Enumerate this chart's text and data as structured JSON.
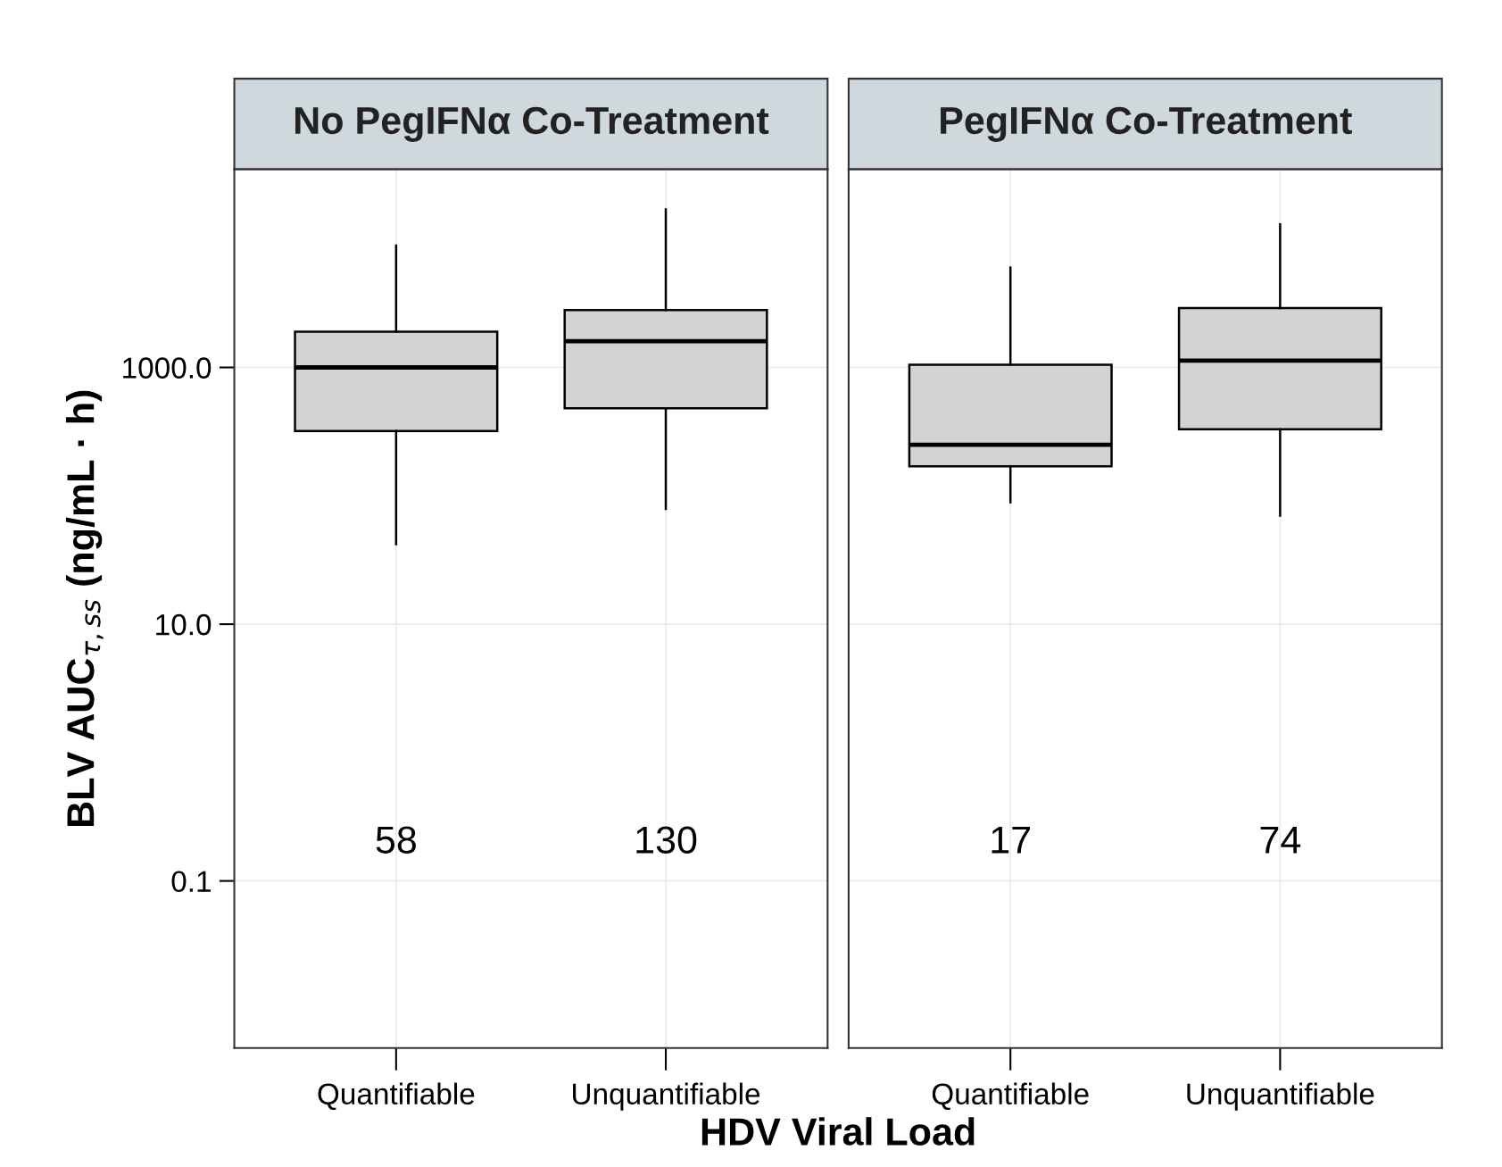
{
  "chart_data": [
    {
      "type": "box",
      "title": "No PegIFNα Co-Treatment",
      "xlabel": "HDV Viral Load",
      "ylabel": "BLV AUC$_{τ,ss}$ (ng/mL · h)",
      "categories": [
        "Quantifiable",
        "Unquantifiable"
      ],
      "color": "#d3d3d3",
      "boxes": [
        {
          "low": 42,
          "q1": 320,
          "median": 1000,
          "q3": 1900,
          "high": 8900
        },
        {
          "low": 79,
          "q1": 480,
          "median": 1600,
          "q3": 2800,
          "high": 17000
        }
      ],
      "log": true,
      "ylim": [
        0.005,
        35000
      ],
      "yticks": [
        {
          "value": 0.1,
          "label": "0.1"
        },
        {
          "value": 10,
          "label": "10.0"
        },
        {
          "value": 1000,
          "label": "1000.0"
        }
      ],
      "grid": true,
      "annotations": [
        "58",
        "130"
      ]
    },
    {
      "type": "box",
      "title": "PegIFNα Co-Treatment",
      "categories": [
        "Quantifiable",
        "Unquantifiable"
      ],
      "color": "#d3d3d3",
      "boxes": [
        {
          "low": 89,
          "q1": 170,
          "median": 250,
          "q3": 1050,
          "high": 6000
        },
        {
          "low": 70,
          "q1": 330,
          "median": 1130,
          "q3": 2900,
          "high": 13000
        }
      ],
      "log": true,
      "ylim": [
        0.005,
        35000
      ],
      "yticks": [
        {
          "value": 0.1,
          "label": null
        },
        {
          "value": 10,
          "label": null
        },
        {
          "value": 1000,
          "label": null
        }
      ],
      "grid": true,
      "tick_labels": "x",
      "annotations": [
        "17",
        "74"
      ]
    }
  ]
}
